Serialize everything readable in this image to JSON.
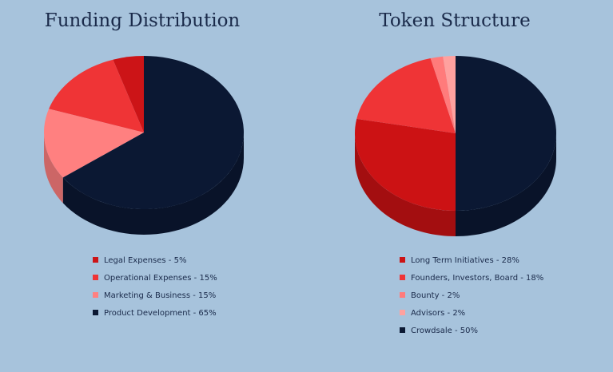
{
  "chart_data": [
    {
      "type": "pie3d",
      "title": "Funding Distribution",
      "categories": [
        "Legal Expenses - 5%",
        "Operational Expenses - 15%",
        "Marketing & Business - 15%",
        "Product Development - 65%"
      ],
      "values": [
        5,
        15,
        15,
        65
      ],
      "colors": [
        "#cc1417",
        "#ef3436",
        "#ff8080",
        "#0b1833"
      ]
    },
    {
      "type": "pie3d",
      "title": "Token Structure",
      "categories": [
        "Long Term Initiatives - 28%",
        "Founders, Investors, Board - 18%",
        "Bounty - 2%",
        "Advisors - 2%",
        "Crowdsale - 50%"
      ],
      "values": [
        28,
        18,
        2,
        2,
        50
      ],
      "colors": [
        "#cc1214",
        "#ef3436",
        "#ff7b7b",
        "#ffa19f",
        "#0b1833"
      ]
    }
  ]
}
